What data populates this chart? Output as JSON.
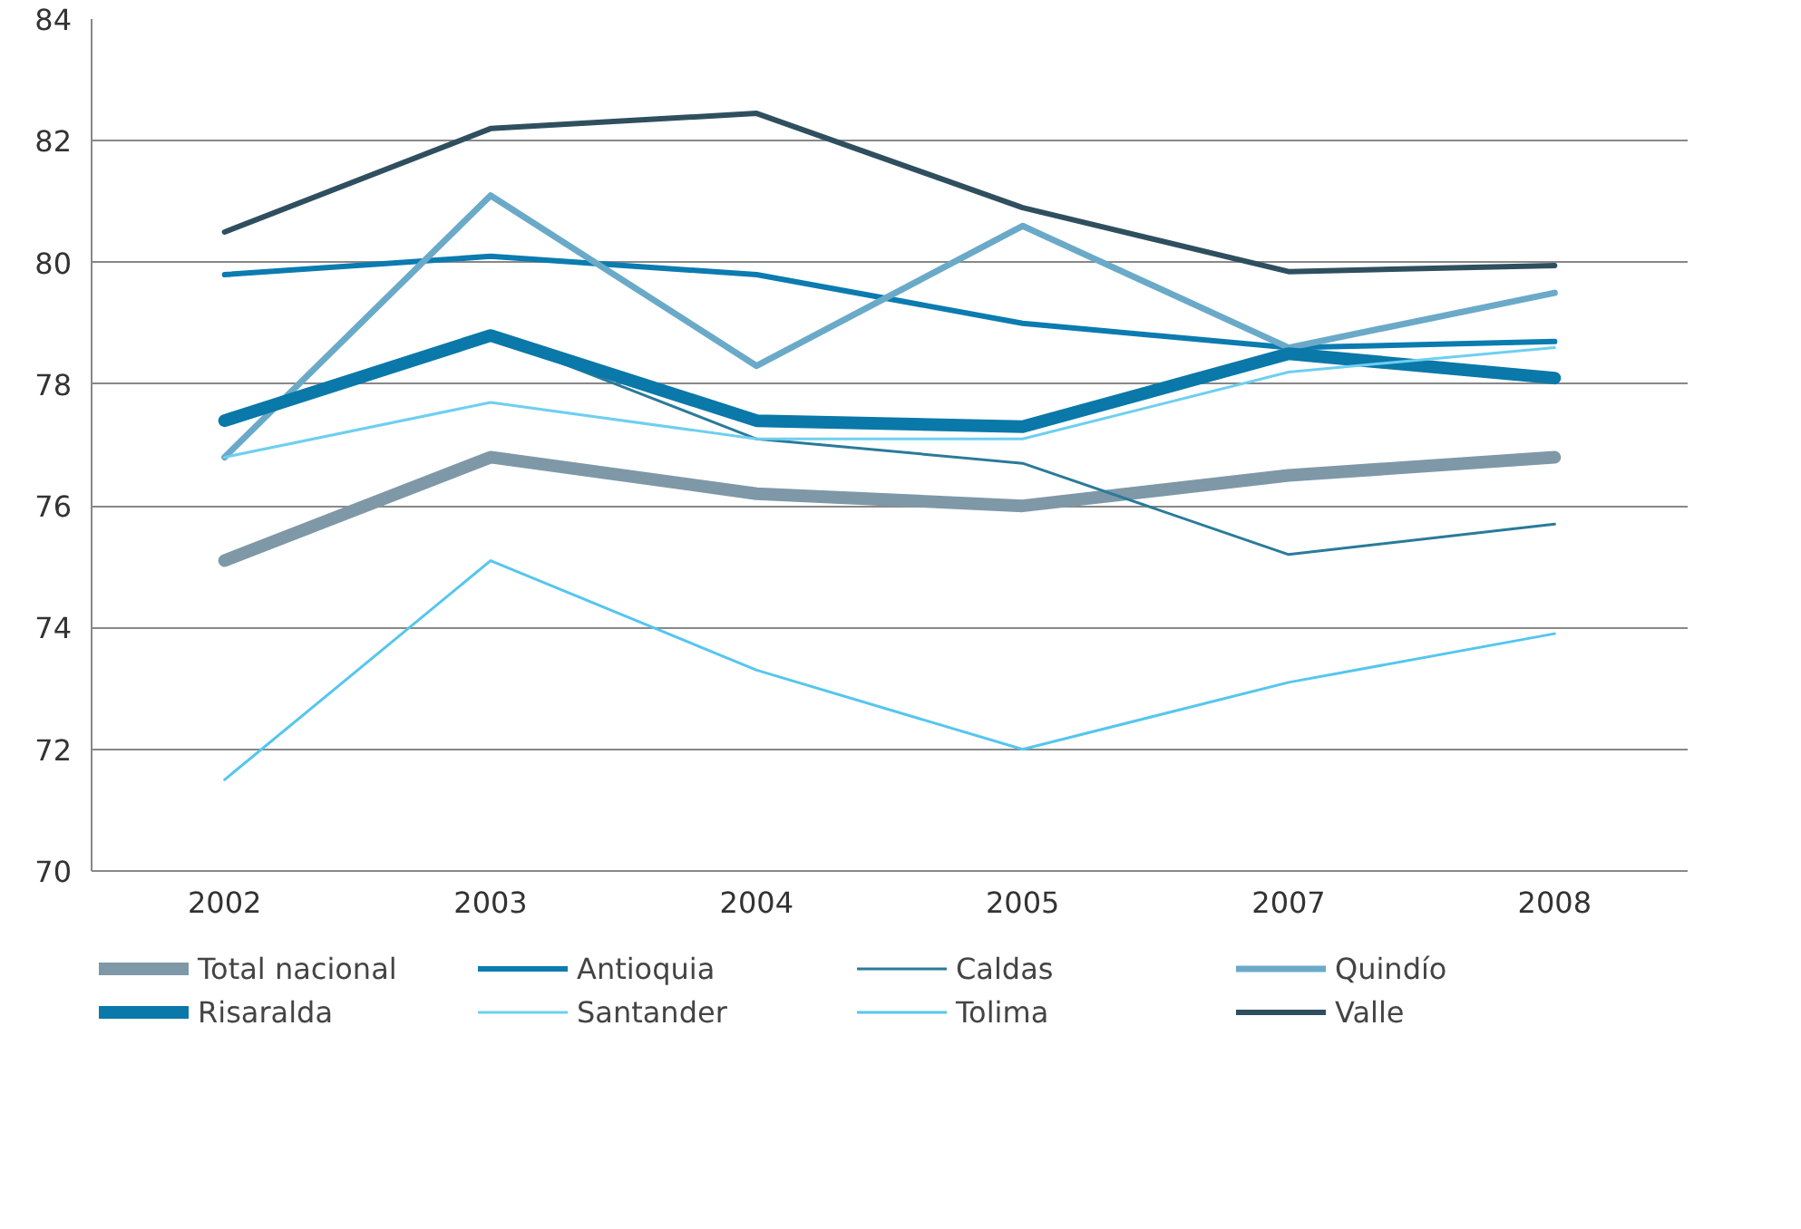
{
  "chart_data": {
    "type": "line",
    "categories": [
      "2002",
      "2003",
      "2004",
      "2005",
      "2007",
      "2008"
    ],
    "ylim": [
      70,
      84
    ],
    "yticks": [
      70,
      72,
      74,
      76,
      78,
      80,
      82,
      84
    ],
    "grid": "y",
    "legend": "bottom",
    "series": [
      {
        "name": "Total nacional",
        "color": "#7f98a8",
        "values": [
          75.1,
          76.8,
          76.2,
          76.0,
          76.5,
          76.8
        ]
      },
      {
        "name": "Antioquia",
        "color": "#0b7bb0",
        "values": [
          79.8,
          80.1,
          79.8,
          79.0,
          78.6,
          78.7
        ]
      },
      {
        "name": "Caldas",
        "color": "#2a7a9a",
        "values": [
          77.4,
          78.8,
          77.1,
          76.7,
          75.2,
          75.7
        ]
      },
      {
        "name": "Quindío",
        "color": "#6aaac8",
        "values": [
          76.8,
          81.1,
          78.3,
          80.6,
          78.6,
          79.5
        ]
      },
      {
        "name": "Risaralda",
        "color": "#0a78a8",
        "values": [
          77.4,
          78.8,
          77.4,
          77.3,
          78.5,
          78.1
        ]
      },
      {
        "name": "Santander",
        "color": "#6ecff0",
        "values": [
          76.8,
          77.7,
          77.1,
          77.1,
          78.2,
          78.6
        ]
      },
      {
        "name": "Tolima",
        "color": "#55c6ee",
        "values": [
          71.5,
          75.1,
          73.3,
          72.0,
          73.1,
          73.9
        ]
      },
      {
        "name": "Valle",
        "color": "#2f4f5f",
        "values": [
          80.5,
          82.2,
          82.45,
          80.9,
          79.85,
          79.95
        ]
      }
    ]
  }
}
